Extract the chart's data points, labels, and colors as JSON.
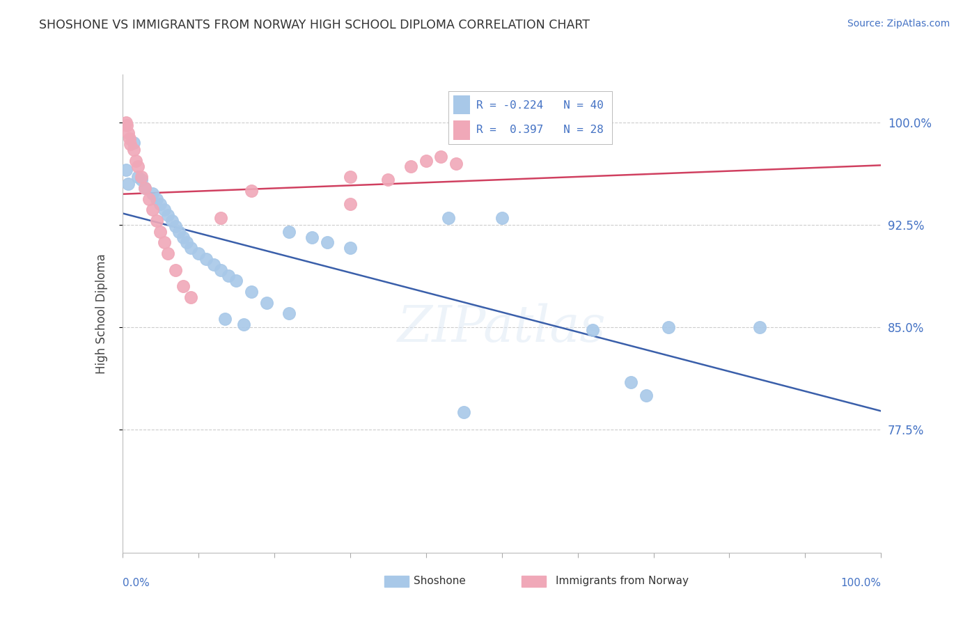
{
  "title": "SHOSHONE VS IMMIGRANTS FROM NORWAY HIGH SCHOOL DIPLOMA CORRELATION CHART",
  "source_text": "Source: ZipAtlas.com",
  "ylabel": "High School Diploma",
  "legend_label1": "Shoshone",
  "legend_label2": "Immigrants from Norway",
  "R1": -0.224,
  "N1": 40,
  "R2": 0.397,
  "N2": 28,
  "color_blue": "#a8c8e8",
  "color_pink": "#f0a8b8",
  "line_blue": "#3a5faa",
  "line_pink": "#d04060",
  "xmin": 0.0,
  "xmax": 1.0,
  "ymin": 0.685,
  "ymax": 1.035,
  "ytick_vals": [
    0.775,
    0.85,
    0.925,
    1.0
  ],
  "ytick_labels": [
    "77.5%",
    "85.0%",
    "92.5%",
    "100.0%"
  ],
  "watermark_text": "ZIPatlas",
  "blue_x": [
    0.005,
    0.008,
    0.015,
    0.02,
    0.025,
    0.03,
    0.04,
    0.045,
    0.05,
    0.055,
    0.06,
    0.065,
    0.07,
    0.075,
    0.08,
    0.085,
    0.09,
    0.1,
    0.11,
    0.12,
    0.13,
    0.14,
    0.15,
    0.17,
    0.19,
    0.22,
    0.135,
    0.16,
    0.22,
    0.25,
    0.27,
    0.3,
    0.43,
    0.5,
    0.62,
    0.72,
    0.84,
    0.67,
    0.69,
    0.45
  ],
  "blue_y": [
    0.965,
    0.955,
    0.985,
    0.96,
    0.958,
    0.952,
    0.948,
    0.944,
    0.94,
    0.936,
    0.932,
    0.928,
    0.924,
    0.92,
    0.916,
    0.912,
    0.908,
    0.904,
    0.9,
    0.896,
    0.892,
    0.888,
    0.884,
    0.876,
    0.868,
    0.86,
    0.856,
    0.852,
    0.92,
    0.916,
    0.912,
    0.908,
    0.93,
    0.93,
    0.848,
    0.85,
    0.85,
    0.81,
    0.8,
    0.788
  ],
  "pink_x": [
    0.005,
    0.006,
    0.008,
    0.009,
    0.01,
    0.015,
    0.018,
    0.02,
    0.025,
    0.03,
    0.035,
    0.04,
    0.045,
    0.05,
    0.055,
    0.06,
    0.07,
    0.08,
    0.09,
    0.13,
    0.17,
    0.3,
    0.35,
    0.38,
    0.4,
    0.42,
    0.44,
    0.3
  ],
  "pink_y": [
    1.0,
    0.998,
    0.992,
    0.988,
    0.984,
    0.98,
    0.972,
    0.968,
    0.96,
    0.952,
    0.944,
    0.936,
    0.928,
    0.92,
    0.912,
    0.904,
    0.892,
    0.88,
    0.872,
    0.93,
    0.95,
    0.96,
    0.958,
    0.968,
    0.972,
    0.975,
    0.97,
    0.94
  ]
}
